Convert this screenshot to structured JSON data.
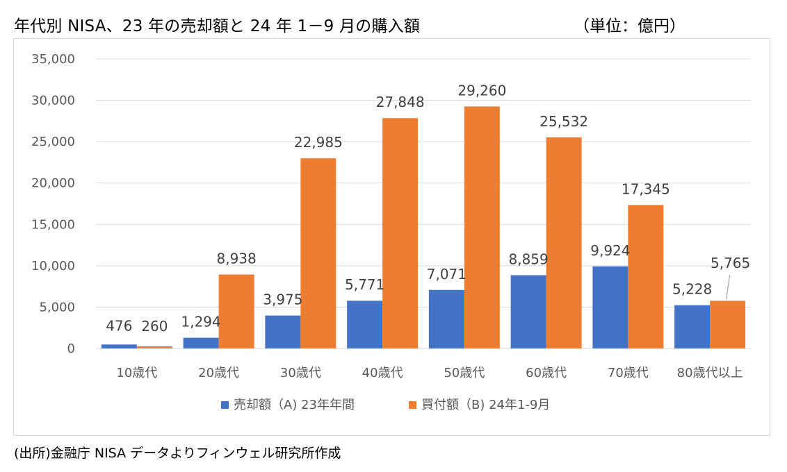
{
  "header": {
    "title": "年代別 NISA、23 年の売却額と 24 年 1－9 月の購入額",
    "unit": "（単位：億円）"
  },
  "footer": {
    "source": "(出所)金融庁 NISA データよりフィンウェル研究所作成"
  },
  "chart_data": {
    "type": "bar",
    "categories": [
      "10歳代",
      "20歳代",
      "30歳代",
      "40歳代",
      "50歳代",
      "60歳代",
      "70歳代",
      "80歳代以上"
    ],
    "series": [
      {
        "name": "売却額（A) 23年年間",
        "color": "#4472c4",
        "values": [
          476,
          1294,
          3975,
          5771,
          7071,
          8859,
          9924,
          5228
        ],
        "labels": [
          "476",
          "1,294",
          "3,975",
          "5,771",
          "7,071",
          "8,859",
          "9,924",
          "5,228"
        ]
      },
      {
        "name": "買付額（B) 24年1-9月",
        "color": "#ed7d31",
        "values": [
          260,
          8938,
          22985,
          27848,
          29260,
          25532,
          17345,
          5765
        ],
        "labels": [
          "260",
          "8,938",
          "22,985",
          "27,848",
          "29,260",
          "25,532",
          "17,345",
          "5,765"
        ]
      }
    ],
    "ylim": [
      0,
      35000
    ],
    "yticks": [
      0,
      5000,
      10000,
      15000,
      20000,
      25000,
      30000,
      35000
    ],
    "ytick_labels": [
      "0",
      "5,000",
      "10,000",
      "15,000",
      "20,000",
      "25,000",
      "30,000",
      "35,000"
    ],
    "grid": true,
    "legend_position": "bottom"
  }
}
